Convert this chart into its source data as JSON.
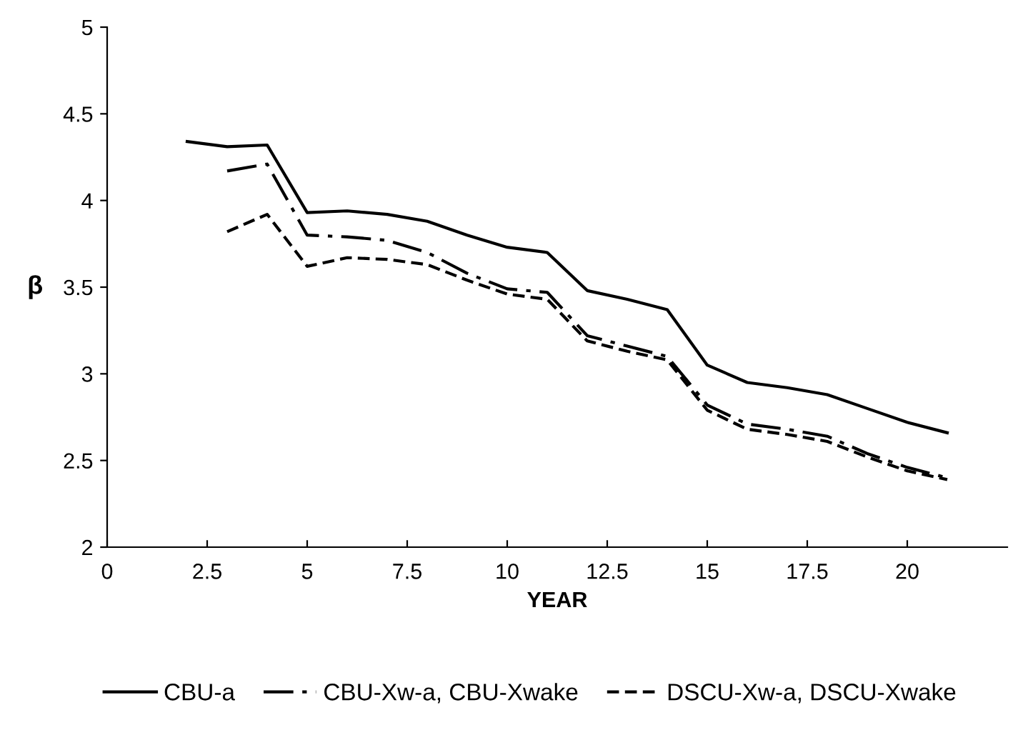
{
  "chart_data": {
    "type": "line",
    "xlabel": "YEAR",
    "ylabel": "β",
    "xlim": [
      0,
      22.5
    ],
    "xticks": [
      0,
      2.5,
      5,
      7.5,
      10,
      12.5,
      15,
      17.5,
      20
    ],
    "ylim": [
      2,
      5
    ],
    "yticks": [
      2,
      2.5,
      3,
      3.5,
      4,
      4.5,
      5
    ],
    "grid": false,
    "legend": "bottom",
    "marker": "none",
    "series": [
      {
        "name": "CBU-a",
        "color": "#000000",
        "line_style": "solid",
        "x": [
          2,
          3,
          4,
          5,
          6,
          7,
          8,
          9,
          10,
          11,
          12,
          13,
          14,
          15,
          16,
          17,
          18,
          19,
          20,
          21
        ],
        "values": [
          4.34,
          4.31,
          4.32,
          3.93,
          3.94,
          3.92,
          3.88,
          3.8,
          3.73,
          3.7,
          3.48,
          3.43,
          3.37,
          3.05,
          2.95,
          2.92,
          2.88,
          2.8,
          2.72,
          2.66
        ]
      },
      {
        "name": "CBU-Xw-a, CBU-Xwake",
        "color": "#000000",
        "line_style": "dashdot",
        "x": [
          3,
          4,
          5,
          6,
          7,
          8,
          9,
          10,
          11,
          12,
          13,
          14,
          15,
          16,
          17,
          18,
          19,
          20,
          21
        ],
        "values": [
          4.17,
          4.21,
          3.8,
          3.79,
          3.77,
          3.7,
          3.58,
          3.49,
          3.47,
          3.22,
          3.16,
          3.1,
          2.82,
          2.71,
          2.68,
          2.64,
          2.54,
          2.46,
          2.4
        ]
      },
      {
        "name": "DSCU-Xw-a, DSCU-Xwake",
        "color": "#000000",
        "line_style": "dashed",
        "x": [
          3,
          4,
          5,
          6,
          7,
          8,
          9,
          10,
          11,
          12,
          13,
          14,
          15,
          16,
          17,
          18,
          19,
          20,
          21
        ],
        "values": [
          3.82,
          3.92,
          3.62,
          3.67,
          3.66,
          3.63,
          3.54,
          3.46,
          3.43,
          3.19,
          3.13,
          3.08,
          2.79,
          2.68,
          2.65,
          2.61,
          2.52,
          2.44,
          2.39
        ]
      }
    ]
  }
}
